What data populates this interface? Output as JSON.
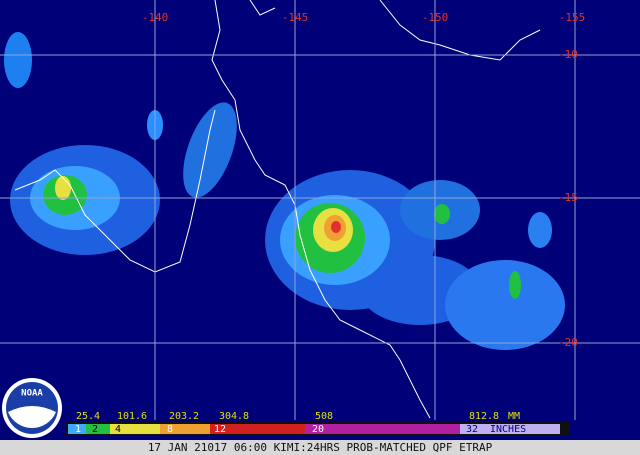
{
  "map": {
    "longitude_labels": [
      "-140",
      "-145",
      "-150",
      "-155"
    ],
    "latitude_labels": [
      "-10",
      "-15",
      "-20"
    ]
  },
  "legend": {
    "mm_labels": [
      "25.4",
      "101.6",
      "203.2",
      "304.8",
      "508",
      "812.8"
    ],
    "mm_unit": "MM",
    "inch_labels": [
      "1",
      "2",
      "4",
      "8",
      "12",
      "20",
      "32"
    ],
    "inch_unit": "INCHES"
  },
  "logo": "NOAA",
  "footer": "17 JAN 21017 06:00 KIMI:24HRS PROB-MATCHED QPF ETRAP"
}
